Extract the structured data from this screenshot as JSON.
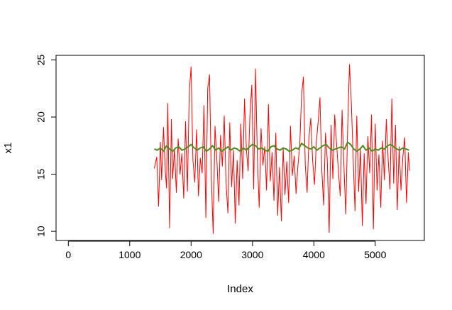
{
  "chart_data": {
    "type": "line",
    "xlabel": "Index",
    "ylabel": "x1",
    "xlim": [
      -200,
      5800
    ],
    "ylim": [
      9.2,
      25.4
    ],
    "x_ticks": [
      0,
      1000,
      2000,
      3000,
      4000,
      5000
    ],
    "x_tick_labels": [
      "0",
      "1000",
      "2000",
      "3000",
      "4000",
      "5000"
    ],
    "y_ticks": [
      10,
      15,
      20,
      25
    ],
    "y_tick_labels": [
      "10",
      "15",
      "20",
      "25"
    ],
    "grid": false,
    "series": [
      {
        "color": "#ff0000",
        "x": [
          1400,
          1440,
          1470,
          1500,
          1520,
          1550,
          1580,
          1600,
          1620,
          1650,
          1680,
          1700,
          1730,
          1760,
          1790,
          1820,
          1850,
          1880,
          1910,
          1940,
          1970,
          2000,
          2030,
          2060,
          2090,
          2120,
          2150,
          2180,
          2210,
          2240,
          2270,
          2300,
          2330,
          2360,
          2390,
          2420,
          2450,
          2480,
          2510,
          2540,
          2570,
          2600,
          2630,
          2660,
          2690,
          2720,
          2750,
          2780,
          2810,
          2840,
          2870,
          2900,
          2930,
          2960,
          2990,
          3020,
          3050,
          3080,
          3110,
          3140,
          3170,
          3200,
          3230,
          3260,
          3290,
          3320,
          3350,
          3380,
          3410,
          3440,
          3470,
          3500,
          3530,
          3560,
          3590,
          3620,
          3650,
          3680,
          3710,
          3740,
          3770,
          3800,
          3830,
          3860,
          3890,
          3920,
          3950,
          3980,
          4010,
          4040,
          4070,
          4100,
          4130,
          4160,
          4190,
          4220,
          4250,
          4280,
          4310,
          4340,
          4370,
          4400,
          4430,
          4460,
          4490,
          4520,
          4550,
          4580,
          4610,
          4640,
          4670,
          4700,
          4730,
          4760,
          4790,
          4820,
          4850,
          4880,
          4910,
          4940,
          4970,
          5000,
          5030,
          5060,
          5090,
          5120,
          5150,
          5180,
          5210,
          5240,
          5270,
          5300,
          5330,
          5360,
          5390,
          5420,
          5450,
          5480,
          5510,
          5540,
          5560
        ],
        "y": [
          15.5,
          16.5,
          12.2,
          17.8,
          14.5,
          19.1,
          15.2,
          13.8,
          21.2,
          10.3,
          19.8,
          14.6,
          17.2,
          13.4,
          18.1,
          15.0,
          16.8,
          12.9,
          19.6,
          13.5,
          22.1,
          24.4,
          16.2,
          14.3,
          18.9,
          13.1,
          16.4,
          15.1,
          21.0,
          11.2,
          22.5,
          23.7,
          14.8,
          9.8,
          19.2,
          16.3,
          12.6,
          18.4,
          15.7,
          20.1,
          14.2,
          11.6,
          19.5,
          13.9,
          17.1,
          10.7,
          16.2,
          12.3,
          19.4,
          14.6,
          21.6,
          17.2,
          15.3,
          20.3,
          22.8,
          13.7,
          24.2,
          16.5,
          12.1,
          19.0,
          15.8,
          17.4,
          13.6,
          21.1,
          14.4,
          16.9,
          12.7,
          18.6,
          11.4,
          15.6,
          10.9,
          17.3,
          13.2,
          16.1,
          12.5,
          19.2,
          14.9,
          16.6,
          13.3,
          15.7,
          17.5,
          21.9,
          23.5,
          15.8,
          13.4,
          18.2,
          19.9,
          16.2,
          14.1,
          17.8,
          19.6,
          21.7,
          15.4,
          12.3,
          18.6,
          16.1,
          9.9,
          19.3,
          14.6,
          20.2,
          17.7,
          15.3,
          13.1,
          20.6,
          15.7,
          11.5,
          18.9,
          24.6,
          21.3,
          16.4,
          11.8,
          20.1,
          13.5,
          17.2,
          10.5,
          16.8,
          12.4,
          18.3,
          15.1,
          20.2,
          10.2,
          19.4,
          13.6,
          16.7,
          12.1,
          17.9,
          14.5,
          19.8,
          16.3,
          13.7,
          21.6,
          14.2,
          19.3,
          11.9,
          17.4,
          13.6,
          16.5,
          18.2,
          12.5,
          16.9,
          15.3
        ]
      },
      {
        "color": "#4a8c1c",
        "x": [
          1400,
          1450,
          1500,
          1550,
          1600,
          1650,
          1700,
          1750,
          1800,
          1850,
          1900,
          1950,
          2000,
          2050,
          2100,
          2150,
          2200,
          2250,
          2300,
          2350,
          2400,
          2450,
          2500,
          2550,
          2600,
          2650,
          2700,
          2750,
          2800,
          2850,
          2900,
          2950,
          3000,
          3050,
          3100,
          3150,
          3200,
          3250,
          3300,
          3350,
          3400,
          3450,
          3500,
          3550,
          3600,
          3650,
          3700,
          3750,
          3800,
          3850,
          3900,
          3950,
          4000,
          4050,
          4100,
          4150,
          4200,
          4250,
          4300,
          4350,
          4400,
          4450,
          4500,
          4550,
          4600,
          4650,
          4700,
          4750,
          4800,
          4850,
          4900,
          4950,
          5000,
          5050,
          5100,
          5150,
          5200,
          5250,
          5300,
          5350,
          5400,
          5450,
          5500,
          5550
        ],
        "y": [
          17.2,
          17.1,
          17.3,
          17.0,
          17.5,
          17.2,
          17.0,
          17.3,
          17.4,
          17.1,
          17.2,
          17.4,
          17.6,
          17.3,
          17.1,
          17.3,
          17.4,
          17.0,
          17.2,
          17.5,
          17.1,
          17.3,
          17.0,
          17.2,
          17.4,
          17.1,
          17.3,
          17.2,
          17.0,
          17.3,
          17.1,
          17.4,
          17.6,
          17.5,
          17.2,
          17.3,
          17.1,
          17.0,
          17.4,
          17.5,
          17.2,
          17.1,
          17.3,
          17.2,
          17.0,
          17.1,
          17.3,
          17.2,
          17.7,
          17.5,
          17.3,
          17.2,
          17.4,
          17.1,
          17.3,
          17.5,
          17.6,
          17.3,
          17.1,
          17.2,
          17.3,
          17.4,
          17.2,
          17.8,
          17.6,
          17.2,
          17.0,
          17.2,
          17.5,
          17.1,
          17.3,
          17.0,
          17.2,
          17.1,
          17.3,
          17.2,
          17.5,
          17.6,
          17.4,
          17.2,
          17.1,
          17.3,
          17.2,
          17.1
        ]
      }
    ]
  }
}
